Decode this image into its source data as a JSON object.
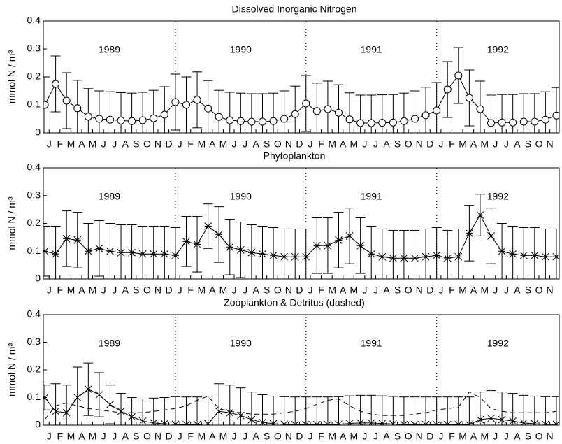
{
  "chart_data": [
    {
      "type": "line",
      "title": "Dissolved Inorganic Nitrogen",
      "ylabel": "mmol N / m³",
      "x": [
        0,
        1,
        2,
        3,
        4,
        5,
        6,
        7,
        8,
        9,
        10,
        11,
        12,
        13,
        14,
        15,
        16,
        17,
        18,
        19,
        20,
        21,
        22,
        23,
        24,
        25,
        26,
        27,
        28,
        29,
        30,
        31,
        32,
        33,
        34,
        35,
        36,
        37,
        38,
        39,
        40,
        41,
        42,
        43,
        44,
        45,
        46,
        47
      ],
      "xlim": [
        -0.13,
        47.26
      ],
      "xticks": [
        {
          "value": 0.4,
          "label": "J"
        },
        {
          "value": 1.4,
          "label": "F"
        },
        {
          "value": 2.4,
          "label": "M"
        },
        {
          "value": 3.4,
          "label": "A"
        },
        {
          "value": 4.4,
          "label": "M"
        },
        {
          "value": 5.4,
          "label": "J"
        },
        {
          "value": 6.4,
          "label": "J"
        },
        {
          "value": 7.4,
          "label": "A"
        },
        {
          "value": 8.4,
          "label": "S"
        },
        {
          "value": 9.4,
          "label": "O"
        },
        {
          "value": 10.4,
          "label": "N"
        },
        {
          "value": 11.4,
          "label": "D"
        },
        {
          "value": 12.4,
          "label": "J"
        },
        {
          "value": 13.4,
          "label": "F"
        },
        {
          "value": 14.4,
          "label": "M"
        },
        {
          "value": 15.4,
          "label": "A"
        },
        {
          "value": 16.4,
          "label": "M"
        },
        {
          "value": 17.4,
          "label": "J"
        },
        {
          "value": 18.4,
          "label": "J"
        },
        {
          "value": 19.4,
          "label": "A"
        },
        {
          "value": 20.4,
          "label": "S"
        },
        {
          "value": 21.4,
          "label": "O"
        },
        {
          "value": 22.4,
          "label": "N"
        },
        {
          "value": 23.4,
          "label": "D"
        },
        {
          "value": 24.4,
          "label": "J"
        },
        {
          "value": 25.4,
          "label": "F"
        },
        {
          "value": 26.4,
          "label": "M"
        },
        {
          "value": 27.4,
          "label": "A"
        },
        {
          "value": 28.4,
          "label": "M"
        },
        {
          "value": 29.4,
          "label": "J"
        },
        {
          "value": 30.4,
          "label": "J"
        },
        {
          "value": 31.4,
          "label": "A"
        },
        {
          "value": 32.4,
          "label": "S"
        },
        {
          "value": 33.4,
          "label": "O"
        },
        {
          "value": 34.4,
          "label": "N"
        },
        {
          "value": 35.4,
          "label": "D"
        },
        {
          "value": 36.4,
          "label": "J"
        },
        {
          "value": 37.4,
          "label": "F"
        },
        {
          "value": 38.4,
          "label": "M"
        },
        {
          "value": 39.4,
          "label": "A"
        },
        {
          "value": 40.4,
          "label": "M"
        },
        {
          "value": 41.4,
          "label": "J"
        },
        {
          "value": 42.4,
          "label": "J"
        },
        {
          "value": 43.4,
          "label": "A"
        },
        {
          "value": 44.4,
          "label": "S"
        },
        {
          "value": 45.4,
          "label": "O"
        },
        {
          "value": 46.4,
          "label": "N"
        }
      ],
      "ylim": [
        0,
        0.4
      ],
      "yticks": [
        0,
        0.1,
        0.2,
        0.3,
        0.4
      ],
      "year_lines": [
        12,
        24,
        36
      ],
      "year_labels": [
        "1989",
        "1990",
        "1991",
        "1992"
      ],
      "series": [
        {
          "color": "#000000",
          "marker": "circle",
          "dash": false,
          "values": [
            0.1,
            0.175,
            0.115,
            0.088,
            0.058,
            0.05,
            0.047,
            0.044,
            0.042,
            0.045,
            0.052,
            0.065,
            0.11,
            0.1,
            0.118,
            0.087,
            0.057,
            0.045,
            0.042,
            0.04,
            0.04,
            0.042,
            0.05,
            0.067,
            0.105,
            0.078,
            0.085,
            0.072,
            0.048,
            0.035,
            0.035,
            0.036,
            0.037,
            0.042,
            0.05,
            0.063,
            0.08,
            0.155,
            0.205,
            0.125,
            0.085,
            0.035,
            0.037,
            0.037,
            0.04,
            0.04,
            0.047,
            0.062
          ],
          "errors": [
            0.1,
            0.1,
            0.1,
            0.1,
            0.1,
            0.1,
            0.1,
            0.1,
            0.1,
            0.1,
            0.1,
            0.1,
            0.1,
            0.1,
            0.1,
            0.1,
            0.095,
            0.1,
            0.1,
            0.1,
            0.1,
            0.1,
            0.1,
            0.1,
            0.1,
            0.1,
            0.1,
            0.1,
            0.095,
            0.1,
            0.1,
            0.1,
            0.1,
            0.1,
            0.1,
            0.1,
            0.1,
            0.1,
            0.1,
            0.1,
            0.1,
            0.1,
            0.1,
            0.1,
            0.1,
            0.1,
            0.1,
            0.1
          ]
        }
      ]
    },
    {
      "type": "line",
      "title": "Phytoplankton",
      "ylabel": "mmol N / m³",
      "x": [
        0,
        1,
        2,
        3,
        4,
        5,
        6,
        7,
        8,
        9,
        10,
        11,
        12,
        13,
        14,
        15,
        16,
        17,
        18,
        19,
        20,
        21,
        22,
        23,
        24,
        25,
        26,
        27,
        28,
        29,
        30,
        31,
        32,
        33,
        34,
        35,
        36,
        37,
        38,
        39,
        40,
        41,
        42,
        43,
        44,
        45,
        46,
        47
      ],
      "xlim": [
        -0.13,
        47.26
      ],
      "xticks": [
        {
          "value": 0.4,
          "label": "J"
        },
        {
          "value": 1.4,
          "label": "F"
        },
        {
          "value": 2.4,
          "label": "M"
        },
        {
          "value": 3.4,
          "label": "A"
        },
        {
          "value": 4.4,
          "label": "M"
        },
        {
          "value": 5.4,
          "label": "J"
        },
        {
          "value": 6.4,
          "label": "J"
        },
        {
          "value": 7.4,
          "label": "A"
        },
        {
          "value": 8.4,
          "label": "S"
        },
        {
          "value": 9.4,
          "label": "O"
        },
        {
          "value": 10.4,
          "label": "N"
        },
        {
          "value": 11.4,
          "label": "D"
        },
        {
          "value": 12.4,
          "label": "J"
        },
        {
          "value": 13.4,
          "label": "F"
        },
        {
          "value": 14.4,
          "label": "M"
        },
        {
          "value": 15.4,
          "label": "A"
        },
        {
          "value": 16.4,
          "label": "M"
        },
        {
          "value": 17.4,
          "label": "J"
        },
        {
          "value": 18.4,
          "label": "J"
        },
        {
          "value": 19.4,
          "label": "A"
        },
        {
          "value": 20.4,
          "label": "S"
        },
        {
          "value": 21.4,
          "label": "O"
        },
        {
          "value": 22.4,
          "label": "N"
        },
        {
          "value": 23.4,
          "label": "D"
        },
        {
          "value": 24.4,
          "label": "J"
        },
        {
          "value": 25.4,
          "label": "F"
        },
        {
          "value": 26.4,
          "label": "M"
        },
        {
          "value": 27.4,
          "label": "A"
        },
        {
          "value": 28.4,
          "label": "M"
        },
        {
          "value": 29.4,
          "label": "J"
        },
        {
          "value": 30.4,
          "label": "J"
        },
        {
          "value": 31.4,
          "label": "A"
        },
        {
          "value": 32.4,
          "label": "S"
        },
        {
          "value": 33.4,
          "label": "O"
        },
        {
          "value": 34.4,
          "label": "N"
        },
        {
          "value": 35.4,
          "label": "D"
        },
        {
          "value": 36.4,
          "label": "J"
        },
        {
          "value": 37.4,
          "label": "F"
        },
        {
          "value": 38.4,
          "label": "M"
        },
        {
          "value": 39.4,
          "label": "A"
        },
        {
          "value": 40.4,
          "label": "M"
        },
        {
          "value": 41.4,
          "label": "J"
        },
        {
          "value": 42.4,
          "label": "J"
        },
        {
          "value": 43.4,
          "label": "A"
        },
        {
          "value": 44.4,
          "label": "S"
        },
        {
          "value": 45.4,
          "label": "O"
        },
        {
          "value": 46.4,
          "label": "N"
        }
      ],
      "ylim": [
        0,
        0.4
      ],
      "yticks": [
        0,
        0.1,
        0.2,
        0.3,
        0.4
      ],
      "year_lines": [
        12,
        24,
        36
      ],
      "year_labels": [
        "1989",
        "1990",
        "1991",
        "1992"
      ],
      "series": [
        {
          "color": "#000000",
          "marker": "star",
          "dash": false,
          "values": [
            0.1,
            0.09,
            0.145,
            0.14,
            0.1,
            0.11,
            0.1,
            0.095,
            0.095,
            0.09,
            0.09,
            0.09,
            0.085,
            0.135,
            0.125,
            0.19,
            0.16,
            0.115,
            0.105,
            0.095,
            0.09,
            0.085,
            0.08,
            0.08,
            0.08,
            0.12,
            0.12,
            0.14,
            0.155,
            0.12,
            0.09,
            0.08,
            0.075,
            0.075,
            0.075,
            0.08,
            0.085,
            0.075,
            0.08,
            0.165,
            0.23,
            0.155,
            0.1,
            0.09,
            0.085,
            0.085,
            0.08,
            0.08
          ],
          "errors": [
            0.09,
            0.1,
            0.1,
            0.1,
            0.1,
            0.1,
            0.1,
            0.1,
            0.1,
            0.1,
            0.1,
            0.1,
            0.1,
            0.09,
            0.1,
            0.08,
            0.1,
            0.1,
            0.1,
            0.1,
            0.1,
            0.1,
            0.1,
            0.1,
            0.1,
            0.1,
            0.1,
            0.1,
            0.1,
            0.1,
            0.1,
            0.1,
            0.1,
            0.1,
            0.1,
            0.1,
            0.1,
            0.1,
            0.1,
            0.1,
            0.075,
            0.1,
            0.1,
            0.1,
            0.1,
            0.1,
            0.1,
            0.1
          ]
        }
      ]
    },
    {
      "type": "line",
      "title": "Zooplankton & Detritus (dashed)",
      "ylabel": "mmol N / m³",
      "x": [
        0,
        1,
        2,
        3,
        4,
        5,
        6,
        7,
        8,
        9,
        10,
        11,
        12,
        13,
        14,
        15,
        16,
        17,
        18,
        19,
        20,
        21,
        22,
        23,
        24,
        25,
        26,
        27,
        28,
        29,
        30,
        31,
        32,
        33,
        34,
        35,
        36,
        37,
        38,
        39,
        40,
        41,
        42,
        43,
        44,
        45,
        46,
        47
      ],
      "xlim": [
        -0.13,
        47.26
      ],
      "xticks": [
        {
          "value": 0.4,
          "label": "J"
        },
        {
          "value": 1.4,
          "label": "F"
        },
        {
          "value": 2.4,
          "label": "M"
        },
        {
          "value": 3.4,
          "label": "A"
        },
        {
          "value": 4.4,
          "label": "M"
        },
        {
          "value": 5.4,
          "label": "J"
        },
        {
          "value": 6.4,
          "label": "J"
        },
        {
          "value": 7.4,
          "label": "A"
        },
        {
          "value": 8.4,
          "label": "S"
        },
        {
          "value": 9.4,
          "label": "O"
        },
        {
          "value": 10.4,
          "label": "N"
        },
        {
          "value": 11.4,
          "label": "D"
        },
        {
          "value": 12.4,
          "label": "J"
        },
        {
          "value": 13.4,
          "label": "F"
        },
        {
          "value": 14.4,
          "label": "M"
        },
        {
          "value": 15.4,
          "label": "A"
        },
        {
          "value": 16.4,
          "label": "M"
        },
        {
          "value": 17.4,
          "label": "J"
        },
        {
          "value": 18.4,
          "label": "J"
        },
        {
          "value": 19.4,
          "label": "A"
        },
        {
          "value": 20.4,
          "label": "S"
        },
        {
          "value": 21.4,
          "label": "O"
        },
        {
          "value": 22.4,
          "label": "N"
        },
        {
          "value": 23.4,
          "label": "D"
        },
        {
          "value": 24.4,
          "label": "J"
        },
        {
          "value": 25.4,
          "label": "F"
        },
        {
          "value": 26.4,
          "label": "M"
        },
        {
          "value": 27.4,
          "label": "A"
        },
        {
          "value": 28.4,
          "label": "M"
        },
        {
          "value": 29.4,
          "label": "J"
        },
        {
          "value": 30.4,
          "label": "J"
        },
        {
          "value": 31.4,
          "label": "A"
        },
        {
          "value": 32.4,
          "label": "S"
        },
        {
          "value": 33.4,
          "label": "O"
        },
        {
          "value": 34.4,
          "label": "N"
        },
        {
          "value": 35.4,
          "label": "D"
        },
        {
          "value": 36.4,
          "label": "J"
        },
        {
          "value": 37.4,
          "label": "F"
        },
        {
          "value": 38.4,
          "label": "M"
        },
        {
          "value": 39.4,
          "label": "A"
        },
        {
          "value": 40.4,
          "label": "M"
        },
        {
          "value": 41.4,
          "label": "J"
        },
        {
          "value": 42.4,
          "label": "J"
        },
        {
          "value": 43.4,
          "label": "A"
        },
        {
          "value": 44.4,
          "label": "S"
        },
        {
          "value": 45.4,
          "label": "O"
        },
        {
          "value": 46.4,
          "label": "N"
        }
      ],
      "ylim": [
        0,
        0.4
      ],
      "yticks": [
        0,
        0.1,
        0.2,
        0.3,
        0.4
      ],
      "year_lines": [
        12,
        24,
        36
      ],
      "year_labels": [
        "1989",
        "1990",
        "1991",
        "1992"
      ],
      "series": [
        {
          "color": "#000000",
          "marker": "x",
          "dash": false,
          "values": [
            0.1,
            0.05,
            0.045,
            0.1,
            0.13,
            0.11,
            0.075,
            0.05,
            0.03,
            0.015,
            0.008,
            0.005,
            0.003,
            0.002,
            0.002,
            0.005,
            0.05,
            0.045,
            0.035,
            0.02,
            0.01,
            0.005,
            0.003,
            0.002,
            0.002,
            0.002,
            0.002,
            0.003,
            0.006,
            0.008,
            0.008,
            0.006,
            0.004,
            0.002,
            0.002,
            0.002,
            0.002,
            0.002,
            0.002,
            0.002,
            0.02,
            0.025,
            0.02,
            0.015,
            0.008,
            0.005,
            0.003,
            0.003
          ],
          "errors": [
            0.045,
            0.1,
            0.1,
            0.11,
            0.095,
            0.08,
            0.07,
            0.065,
            0.07,
            0.08,
            0.09,
            0.095,
            0.1,
            0.1,
            0.1,
            0.1,
            0.1,
            0.1,
            0.1,
            0.1,
            0.1,
            0.1,
            0.1,
            0.1,
            0.1,
            0.1,
            0.1,
            0.1,
            0.1,
            0.1,
            0.1,
            0.1,
            0.1,
            0.1,
            0.1,
            0.1,
            0.1,
            0.1,
            0.1,
            0.1,
            0.1,
            0.1,
            0.1,
            0.1,
            0.1,
            0.1,
            0.1,
            0.1
          ]
        },
        {
          "color": "#000000",
          "marker": "none",
          "dash": true,
          "values": [
            0.02,
            0.07,
            0.08,
            0.07,
            0.06,
            0.055,
            0.05,
            0.045,
            0.045,
            0.045,
            0.05,
            0.055,
            0.06,
            0.07,
            0.09,
            0.105,
            0.06,
            0.05,
            0.045,
            0.04,
            0.04,
            0.04,
            0.045,
            0.05,
            0.06,
            0.075,
            0.09,
            0.095,
            0.07,
            0.05,
            0.04,
            0.035,
            0.035,
            0.035,
            0.04,
            0.045,
            0.055,
            0.06,
            0.065,
            0.12,
            0.1,
            0.06,
            0.05,
            0.045,
            0.045,
            0.045,
            0.045,
            0.05
          ]
        }
      ]
    }
  ]
}
